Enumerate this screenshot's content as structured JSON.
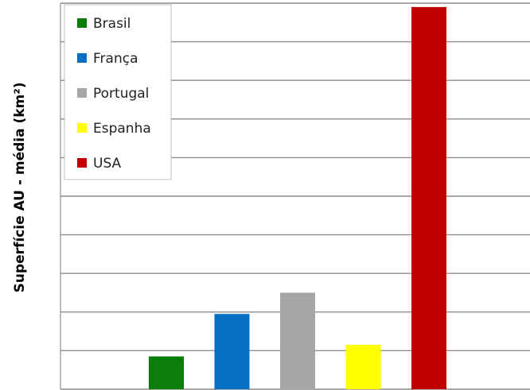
{
  "chart_data": {
    "type": "bar",
    "title": "",
    "xlabel": "",
    "ylabel": "Superfície  AU - média (km²)",
    "categories": [
      "Brasil",
      "França",
      "Portugal",
      "Espanha",
      "USA"
    ],
    "values": [
      8.5,
      19.5,
      25,
      11.5,
      99
    ],
    "colors": [
      "#0a7d0a",
      "#0570c1",
      "#a6a6a6",
      "#ffff00",
      "#c00000"
    ],
    "ylim": [
      0,
      100
    ],
    "y_gridline_step": 10,
    "y_tick_labels_visible": false,
    "grid": true,
    "legend": {
      "placement": "top-left",
      "entries": [
        {
          "label": "Brasil",
          "color": "#0a7d0a"
        },
        {
          "label": "França",
          "color": "#0570c1"
        },
        {
          "label": "Portugal",
          "color": "#a6a6a6"
        },
        {
          "label": "Espanha",
          "color": "#ffff00"
        },
        {
          "label": "USA",
          "color": "#c00000"
        }
      ]
    }
  }
}
